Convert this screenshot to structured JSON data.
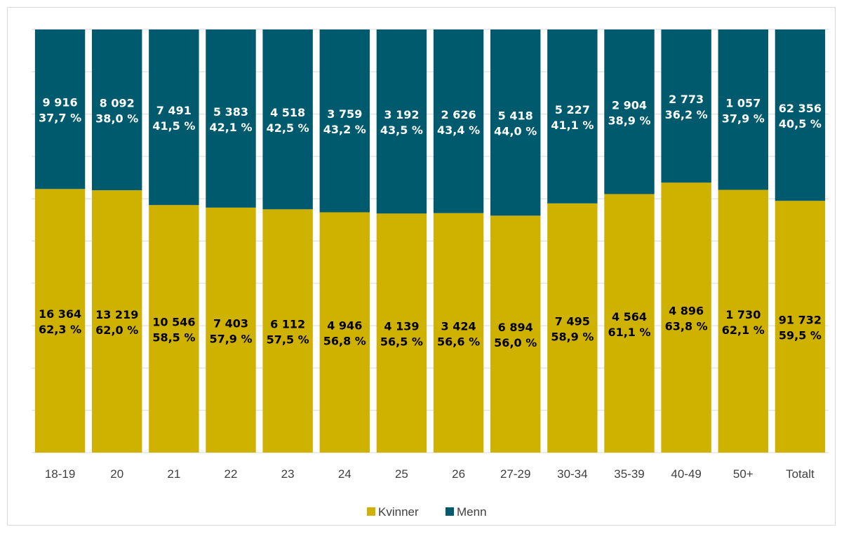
{
  "chart_data": {
    "type": "bar",
    "stacked": true,
    "normalized": true,
    "ylim": [
      0,
      100
    ],
    "grid": true,
    "legend_position": "bottom",
    "categories": [
      "18-19",
      "20",
      "21",
      "22",
      "23",
      "24",
      "25",
      "26",
      "27-29",
      "30-34",
      "35-39",
      "40-49",
      "50+",
      "Totalt"
    ],
    "series": [
      {
        "name": "Kvinner",
        "color": "#cfb200",
        "label_color": "#000000",
        "counts": [
          "16 364",
          "13 219",
          "10 546",
          "7 403",
          "6 112",
          "4 946",
          "4 139",
          "3 424",
          "6 894",
          "7 495",
          "4 564",
          "4 896",
          "1 730",
          "91 732"
        ],
        "percent_labels": [
          "62,3 %",
          "62,0 %",
          "58,5 %",
          "57,9 %",
          "57,5 %",
          "56,8 %",
          "56,5 %",
          "56,6 %",
          "56,0 %",
          "58,9 %",
          "61,1 %",
          "63,8 %",
          "62,1 %",
          "59,5 %"
        ],
        "values": [
          62.3,
          62.0,
          58.5,
          57.9,
          57.5,
          56.8,
          56.5,
          56.6,
          56.0,
          58.9,
          61.1,
          63.8,
          62.1,
          59.5
        ]
      },
      {
        "name": "Menn",
        "color": "#005a6e",
        "label_color": "#ffffff",
        "counts": [
          "9 916",
          "8 092",
          "7 491",
          "5 383",
          "4 518",
          "3 759",
          "3 192",
          "2 626",
          "5 418",
          "5 227",
          "2 904",
          "2 773",
          "1 057",
          "62 356"
        ],
        "percent_labels": [
          "37,7 %",
          "38,0 %",
          "41,5 %",
          "42,1 %",
          "42,5 %",
          "43,2 %",
          "43,5 %",
          "43,4 %",
          "44,0 %",
          "41,1 %",
          "38,9 %",
          "36,2 %",
          "37,9 %",
          "40,5 %"
        ],
        "values": [
          37.7,
          38.0,
          41.5,
          42.1,
          42.5,
          43.2,
          43.5,
          43.4,
          44.0,
          41.1,
          38.9,
          36.2,
          37.9,
          40.5
        ]
      }
    ]
  }
}
